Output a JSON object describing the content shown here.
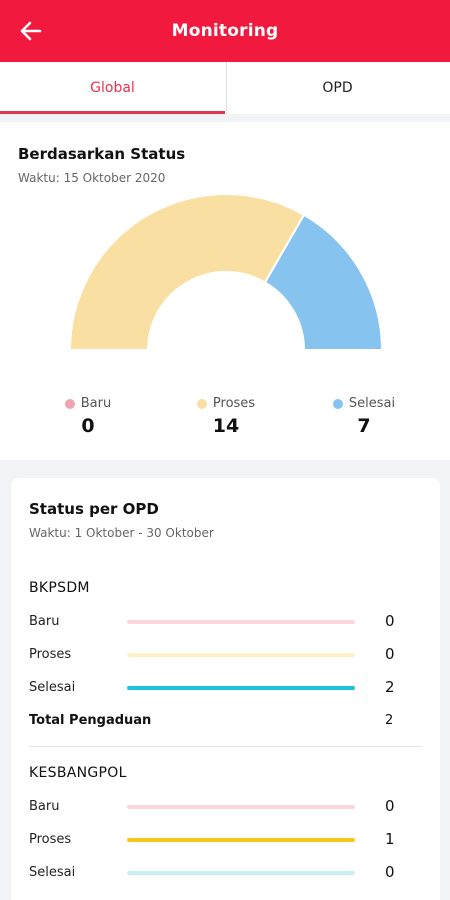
{
  "header": {
    "title": "Monitoring",
    "back_icon": "arrow-left-icon"
  },
  "tabs": [
    {
      "label": "Global",
      "active": true
    },
    {
      "label": "OPD",
      "active": false
    }
  ],
  "status_card": {
    "title": "Berdasarkan Status",
    "subtitle": "Waktu: 15 Oktober 2020",
    "legend": [
      {
        "label": "Baru",
        "value": "0",
        "color": "#f1a3b3"
      },
      {
        "label": "Proses",
        "value": "14",
        "color": "#f9e0a2"
      },
      {
        "label": "Selesai",
        "value": "7",
        "color": "#87c3ef"
      }
    ]
  },
  "chart_data": {
    "type": "pie",
    "variant": "half-donut",
    "categories": [
      "Baru",
      "Proses",
      "Selesai"
    ],
    "values": [
      0,
      14,
      7
    ],
    "colors": [
      "#f1a3b3",
      "#f9e0a2",
      "#87c3ef"
    ]
  },
  "opd_card": {
    "title": "Status per OPD",
    "subtitle": "Waktu: 1 Oktober - 30 Oktober",
    "groups": [
      {
        "name": "BKPSDM",
        "rows": [
          {
            "label": "Baru",
            "value": "0",
            "color": "#fbd6dd"
          },
          {
            "label": "Proses",
            "value": "0",
            "color": "#fdf1c9"
          },
          {
            "label": "Selesai",
            "value": "2",
            "color": "#1cc6d8"
          }
        ],
        "total_label": "Total Pengaduan",
        "total_value": "2"
      },
      {
        "name": "KESBANGPOL",
        "rows": [
          {
            "label": "Baru",
            "value": "0",
            "color": "#fbd6dd"
          },
          {
            "label": "Proses",
            "value": "1",
            "color": "#f7c71c"
          },
          {
            "label": "Selesai",
            "value": "0",
            "color": "#c8eef6"
          }
        ]
      }
    ]
  }
}
